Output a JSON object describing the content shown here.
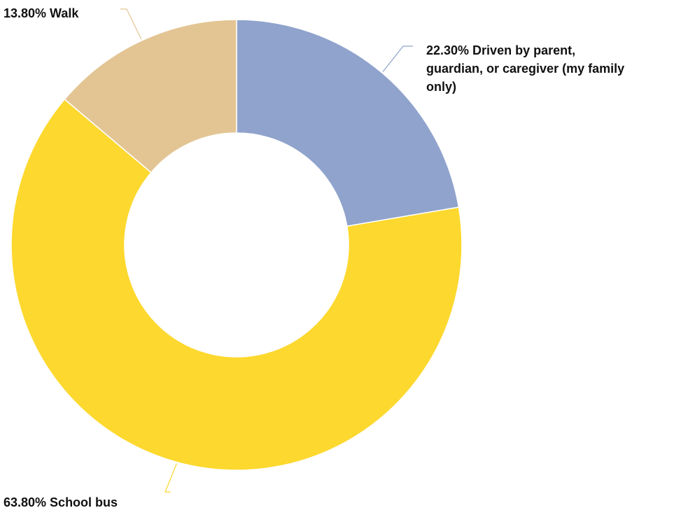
{
  "chart_data": {
    "type": "pie",
    "donut": true,
    "slices": [
      {
        "label": "Driven by parent, guardian, or caregiver (my family only)",
        "value": 22.3,
        "display": "22.30%",
        "color": "#8fa3cc"
      },
      {
        "label": "School bus",
        "value": 63.8,
        "display": "63.80%",
        "color": "#fdd82e"
      },
      {
        "label": "Walk",
        "value": 13.8,
        "display": "13.80%",
        "color": "#e3c594"
      }
    ],
    "label_lines": [
      [
        "22.30% Driven by parent,",
        "guardian, or caregiver (my family",
        "only)"
      ],
      [
        "63.80% School bus"
      ],
      [
        "13.80% Walk"
      ]
    ],
    "legend": "none"
  }
}
